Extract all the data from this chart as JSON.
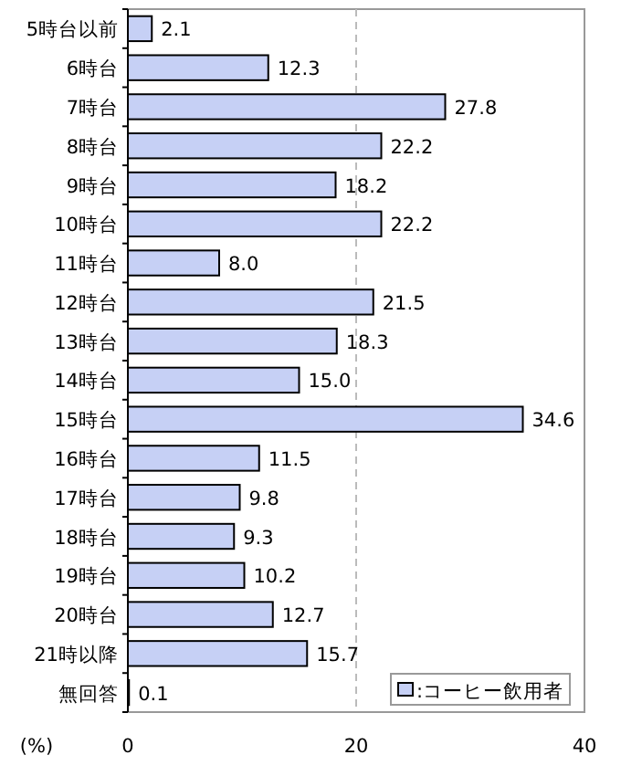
{
  "chart_data": {
    "type": "bar",
    "orientation": "horizontal",
    "xlabel": "(%)",
    "categories": [
      "5時台以前",
      "6時台",
      "7時台",
      "8時台",
      "9時台",
      "10時台",
      "11時台",
      "12時台",
      "13時台",
      "14時台",
      "15時台",
      "16時台",
      "17時台",
      "18時台",
      "19時台",
      "20時台",
      "21時以降",
      "無回答"
    ],
    "series": [
      {
        "name": ":コーヒー飲用者",
        "color": "#c6d0f5",
        "values": [
          2.1,
          12.3,
          27.8,
          22.2,
          18.2,
          22.2,
          8.0,
          21.5,
          18.3,
          15.0,
          34.6,
          11.5,
          9.8,
          9.3,
          10.2,
          12.7,
          15.7,
          0.1
        ],
        "value_labels": [
          "2.1",
          "12.3",
          "27.8",
          "22.2",
          "18.2",
          "22.2",
          "8.0",
          "21.5",
          "18.3",
          "15.0",
          "34.6",
          "11.5",
          "9.8",
          "9.3",
          "10.2",
          "12.7",
          "15.7",
          "0.1"
        ]
      }
    ],
    "xlim": [
      0,
      40
    ],
    "xticks": [
      0,
      20,
      40
    ],
    "grid": "x",
    "legend": "bottom right"
  }
}
